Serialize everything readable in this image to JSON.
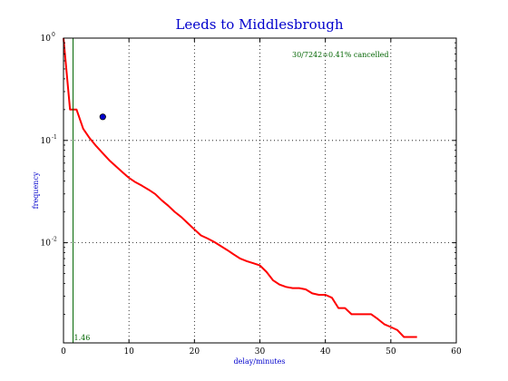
{
  "chart_data": {
    "type": "line",
    "title": "Leeds to Middlesbrough",
    "xlabel": "delay/minutes",
    "ylabel": "frequency",
    "xlim": [
      0,
      60
    ],
    "ylim": [
      0.00105,
      1
    ],
    "y_scale": "log",
    "grid": true,
    "x_ticks": [
      0,
      10,
      20,
      30,
      40,
      50,
      60
    ],
    "x_tick_labels": [
      "0",
      "10",
      "20",
      "30",
      "40",
      "50",
      "60"
    ],
    "y_ticks": [
      1,
      0.1,
      0.01
    ],
    "y_tick_labels": [
      {
        "base": "10",
        "exp": "0"
      },
      {
        "base": "10",
        "exp": "-1"
      },
      {
        "base": "10",
        "exp": "-2"
      }
    ],
    "annotation": "30/7242=0.41% cancelled",
    "vline": {
      "x": 1.46,
      "label": "1.46",
      "color": "#006400"
    },
    "point": {
      "x": 6,
      "y": 0.17,
      "color": "#0000cc"
    },
    "series": [
      {
        "color": "#ff0000",
        "x": [
          0,
          1,
          2,
          3,
          4,
          5,
          6,
          7,
          8,
          9,
          10,
          11,
          12,
          13,
          14,
          15,
          16,
          17,
          18,
          19,
          20,
          21,
          22,
          23,
          24,
          25,
          26,
          27,
          28,
          29,
          30,
          31,
          32,
          33,
          34,
          35,
          36,
          37,
          38,
          39,
          40,
          41,
          42,
          43,
          44,
          45,
          46,
          47,
          48,
          49,
          50,
          51,
          52,
          53,
          54
        ],
        "y": [
          1.0,
          0.2,
          0.2,
          0.13,
          0.105,
          0.088,
          0.075,
          0.064,
          0.056,
          0.049,
          0.043,
          0.039,
          0.036,
          0.033,
          0.03,
          0.026,
          0.023,
          0.02,
          0.0178,
          0.0155,
          0.0135,
          0.0118,
          0.011,
          0.0102,
          0.0093,
          0.0085,
          0.0077,
          0.007,
          0.0066,
          0.0063,
          0.006,
          0.0052,
          0.0043,
          0.0039,
          0.0037,
          0.0036,
          0.0036,
          0.0035,
          0.0032,
          0.0031,
          0.0031,
          0.0029,
          0.0023,
          0.0023,
          0.002,
          0.002,
          0.002,
          0.002,
          0.0018,
          0.0016,
          0.0015,
          0.0014,
          0.0012,
          0.0012,
          0.0012
        ]
      }
    ]
  }
}
